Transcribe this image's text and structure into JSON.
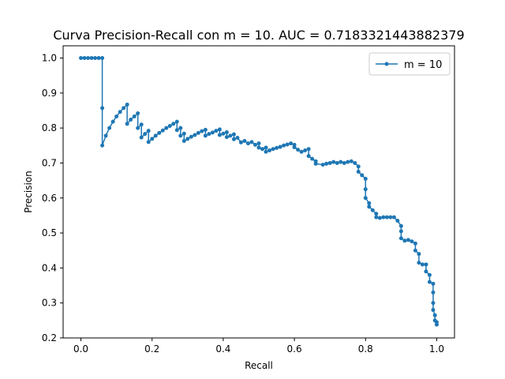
{
  "chart_data": {
    "type": "line",
    "title": "Curva Precision-Recall con m = 10. AUC = 0.7183321443882379",
    "xlabel": "Recall",
    "ylabel": "Precision",
    "xlim": [
      -0.05,
      1.05
    ],
    "ylim": [
      0.2,
      1.035
    ],
    "xticks": [
      "0.0",
      "0.2",
      "0.4",
      "0.6",
      "0.8",
      "1.0"
    ],
    "yticks": [
      "0.2",
      "0.3",
      "0.4",
      "0.5",
      "0.6",
      "0.7",
      "0.8",
      "0.9",
      "1.0"
    ],
    "legend_position": "top-right",
    "colors": {
      "series": "#1f77b4"
    },
    "series": [
      {
        "name": "m = 10",
        "points": [
          [
            0.0,
            1.0
          ],
          [
            0.01,
            1.0
          ],
          [
            0.02,
            1.0
          ],
          [
            0.03,
            1.0
          ],
          [
            0.04,
            1.0
          ],
          [
            0.05,
            1.0
          ],
          [
            0.06,
            1.0
          ],
          [
            0.06,
            0.857
          ],
          [
            0.06,
            0.75
          ],
          [
            0.07,
            0.778
          ],
          [
            0.08,
            0.8
          ],
          [
            0.09,
            0.818
          ],
          [
            0.1,
            0.833
          ],
          [
            0.11,
            0.846
          ],
          [
            0.12,
            0.857
          ],
          [
            0.13,
            0.867
          ],
          [
            0.13,
            0.812
          ],
          [
            0.14,
            0.824
          ],
          [
            0.15,
            0.833
          ],
          [
            0.16,
            0.842
          ],
          [
            0.16,
            0.8
          ],
          [
            0.17,
            0.81
          ],
          [
            0.17,
            0.773
          ],
          [
            0.18,
            0.783
          ],
          [
            0.19,
            0.792
          ],
          [
            0.19,
            0.76
          ],
          [
            0.2,
            0.769
          ],
          [
            0.21,
            0.778
          ],
          [
            0.22,
            0.786
          ],
          [
            0.23,
            0.793
          ],
          [
            0.24,
            0.8
          ],
          [
            0.25,
            0.806
          ],
          [
            0.26,
            0.812
          ],
          [
            0.27,
            0.818
          ],
          [
            0.27,
            0.794
          ],
          [
            0.28,
            0.8
          ],
          [
            0.28,
            0.778
          ],
          [
            0.29,
            0.784
          ],
          [
            0.29,
            0.763
          ],
          [
            0.3,
            0.769
          ],
          [
            0.31,
            0.775
          ],
          [
            0.32,
            0.78
          ],
          [
            0.33,
            0.786
          ],
          [
            0.34,
            0.791
          ],
          [
            0.35,
            0.795
          ],
          [
            0.35,
            0.778
          ],
          [
            0.36,
            0.783
          ],
          [
            0.37,
            0.787
          ],
          [
            0.38,
            0.792
          ],
          [
            0.39,
            0.796
          ],
          [
            0.39,
            0.78
          ],
          [
            0.4,
            0.784
          ],
          [
            0.41,
            0.788
          ],
          [
            0.41,
            0.774
          ],
          [
            0.42,
            0.778
          ],
          [
            0.43,
            0.782
          ],
          [
            0.43,
            0.768
          ],
          [
            0.44,
            0.772
          ],
          [
            0.45,
            0.759
          ],
          [
            0.46,
            0.763
          ],
          [
            0.47,
            0.756
          ],
          [
            0.48,
            0.76
          ],
          [
            0.49,
            0.752
          ],
          [
            0.5,
            0.756
          ],
          [
            0.5,
            0.744
          ],
          [
            0.51,
            0.74
          ],
          [
            0.52,
            0.744
          ],
          [
            0.52,
            0.732
          ],
          [
            0.53,
            0.736
          ],
          [
            0.54,
            0.74
          ],
          [
            0.55,
            0.743
          ],
          [
            0.56,
            0.746
          ],
          [
            0.57,
            0.75
          ],
          [
            0.58,
            0.753
          ],
          [
            0.59,
            0.756
          ],
          [
            0.6,
            0.752
          ],
          [
            0.6,
            0.745
          ],
          [
            0.61,
            0.738
          ],
          [
            0.62,
            0.732
          ],
          [
            0.63,
            0.736
          ],
          [
            0.64,
            0.74
          ],
          [
            0.64,
            0.72
          ],
          [
            0.65,
            0.712
          ],
          [
            0.66,
            0.705
          ],
          [
            0.66,
            0.698
          ],
          [
            0.68,
            0.695
          ],
          [
            0.69,
            0.698
          ],
          [
            0.7,
            0.7
          ],
          [
            0.71,
            0.703
          ],
          [
            0.72,
            0.7
          ],
          [
            0.73,
            0.703
          ],
          [
            0.74,
            0.7
          ],
          [
            0.75,
            0.703
          ],
          [
            0.76,
            0.705
          ],
          [
            0.77,
            0.7
          ],
          [
            0.78,
            0.69
          ],
          [
            0.78,
            0.675
          ],
          [
            0.79,
            0.665
          ],
          [
            0.8,
            0.655
          ],
          [
            0.8,
            0.625
          ],
          [
            0.8,
            0.6
          ],
          [
            0.81,
            0.585
          ],
          [
            0.81,
            0.575
          ],
          [
            0.82,
            0.565
          ],
          [
            0.83,
            0.555
          ],
          [
            0.83,
            0.545
          ],
          [
            0.84,
            0.543
          ],
          [
            0.85,
            0.545
          ],
          [
            0.86,
            0.545
          ],
          [
            0.87,
            0.545
          ],
          [
            0.88,
            0.545
          ],
          [
            0.89,
            0.535
          ],
          [
            0.9,
            0.52
          ],
          [
            0.9,
            0.505
          ],
          [
            0.9,
            0.485
          ],
          [
            0.91,
            0.478
          ],
          [
            0.92,
            0.48
          ],
          [
            0.93,
            0.476
          ],
          [
            0.94,
            0.47
          ],
          [
            0.94,
            0.45
          ],
          [
            0.95,
            0.44
          ],
          [
            0.95,
            0.415
          ],
          [
            0.96,
            0.41
          ],
          [
            0.97,
            0.41
          ],
          [
            0.97,
            0.39
          ],
          [
            0.98,
            0.38
          ],
          [
            0.98,
            0.36
          ],
          [
            0.99,
            0.355
          ],
          [
            0.99,
            0.33
          ],
          [
            0.99,
            0.3
          ],
          [
            0.99,
            0.28
          ],
          [
            0.995,
            0.265
          ],
          [
            0.995,
            0.25
          ],
          [
            1.0,
            0.245
          ],
          [
            1.0,
            0.238
          ]
        ]
      }
    ]
  }
}
